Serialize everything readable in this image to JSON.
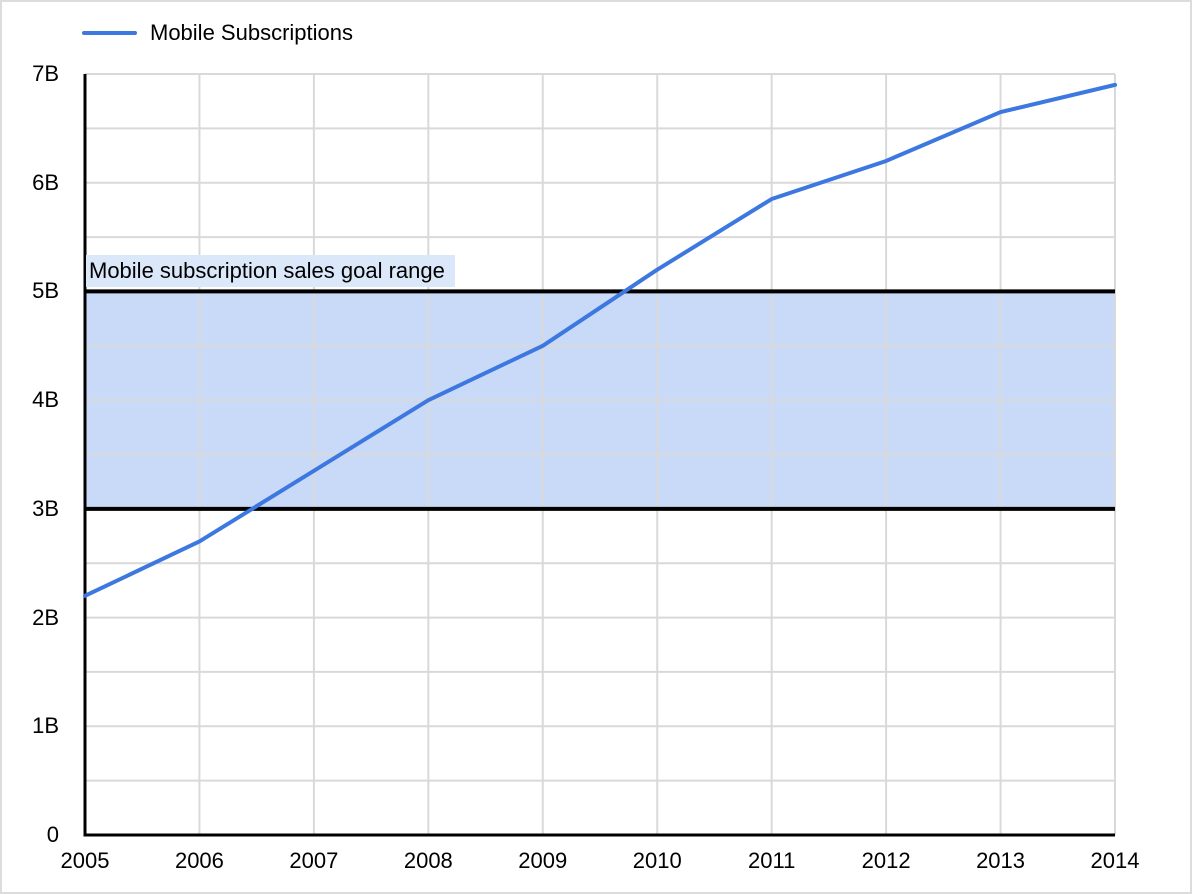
{
  "legend": {
    "series_label": "Mobile Subscriptions"
  },
  "colors": {
    "line": "#3c78e0",
    "band_fill": "#c9daf8",
    "band_border": "#000000",
    "annotation_bg": "#dbe8fa",
    "gridline": "#d9d9d9",
    "axis": "#000000",
    "text": "#000000",
    "frame_border": "#dcdcdc"
  },
  "chart_data": {
    "type": "line",
    "x": [
      "2005",
      "2006",
      "2007",
      "2008",
      "2009",
      "2010",
      "2011",
      "2012",
      "2013",
      "2014"
    ],
    "series": [
      {
        "name": "Mobile Subscriptions",
        "values": [
          2.2,
          2.7,
          3.35,
          4.0,
          4.5,
          5.2,
          5.85,
          6.2,
          6.65,
          6.9
        ]
      }
    ],
    "unit": "billions",
    "ylim": [
      0,
      7
    ],
    "y_tick_labels": [
      "0",
      "1B",
      "2B",
      "3B",
      "4B",
      "5B",
      "6B",
      "7B"
    ],
    "y_label_step": 1,
    "gridline_step": 0.5,
    "grid": true,
    "legend_position": "top-left",
    "title": "",
    "xlabel": "",
    "ylabel": "",
    "band": {
      "from": 3,
      "to": 5,
      "label": "Mobile subscription sales goal range"
    }
  }
}
